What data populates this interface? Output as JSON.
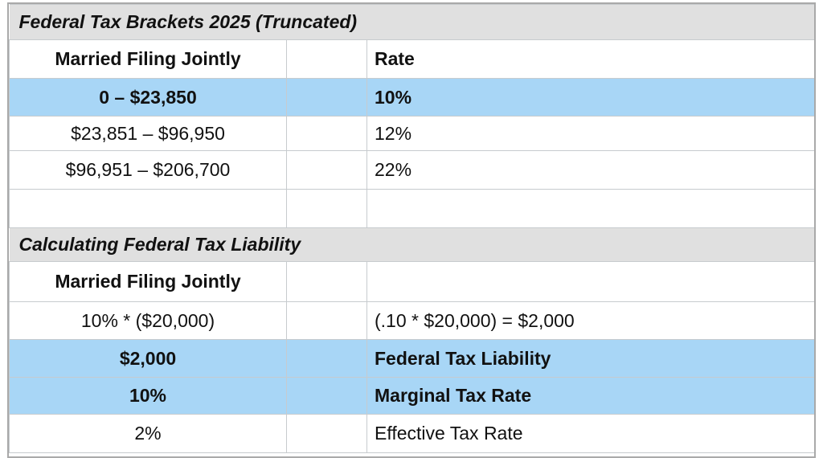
{
  "colors": {
    "section_header_bg": "#e0e0e0",
    "highlight_row_bg": "#a8d6f6",
    "grid_line": "#c7cbce",
    "outer_border": "#a9a9a9",
    "text": "#111111",
    "page_bg": "#ffffff"
  },
  "section1": {
    "title": "Federal Tax Brackets 2025 (Truncated)",
    "header": {
      "col1": "Married Filing Jointly",
      "col2": "",
      "col3": "Rate"
    },
    "rows": [
      {
        "bracket": "0 – $23,850",
        "middle": "",
        "rate": "10%"
      },
      {
        "bracket": "$23,851 – $96,950",
        "middle": "",
        "rate": "12%"
      },
      {
        "bracket": "$96,951 – $206,700",
        "middle": "",
        "rate": "22%"
      },
      {
        "bracket": "",
        "middle": "",
        "rate": ""
      }
    ]
  },
  "section2": {
    "title": "Calculating Federal Tax Liability",
    "header": {
      "col1": "Married Filing Jointly",
      "col2": "",
      "col3": ""
    },
    "rows": [
      {
        "value": "10% * ($20,000)",
        "middle": "",
        "label": "(.10 * $20,000) = $2,000"
      },
      {
        "value": "$2,000",
        "middle": "",
        "label": "Federal Tax Liability"
      },
      {
        "value": "10%",
        "middle": "",
        "label": "Marginal Tax Rate"
      },
      {
        "value": "2%",
        "middle": "",
        "label": "Effective Tax Rate"
      }
    ]
  }
}
